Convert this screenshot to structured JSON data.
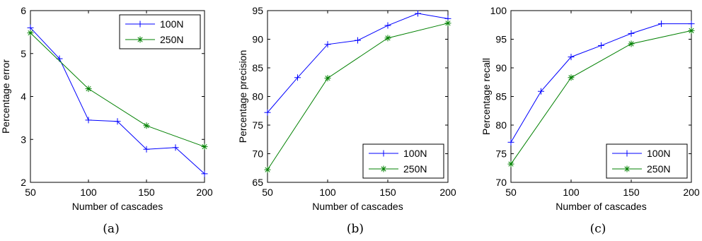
{
  "chart_data": [
    {
      "type": "line",
      "caption": "(a)",
      "xlabel": "Number of cascades",
      "ylabel": "Percentage error",
      "xlim": [
        50,
        200
      ],
      "ylim": [
        2,
        6
      ],
      "xticks": [
        50,
        100,
        150,
        200
      ],
      "yticks": [
        2,
        3,
        4,
        5,
        6
      ],
      "legend_position": "top-right",
      "series": [
        {
          "name": "100N",
          "color": "#0000ff",
          "marker": "plus",
          "x": [
            50,
            75,
            100,
            125,
            150,
            175,
            200
          ],
          "y": [
            5.6,
            4.88,
            3.45,
            3.42,
            2.77,
            2.81,
            2.2
          ]
        },
        {
          "name": "250N",
          "color": "#008000",
          "marker": "star",
          "x": [
            50,
            100,
            150,
            200
          ],
          "y": [
            5.48,
            4.18,
            3.32,
            2.83
          ]
        }
      ]
    },
    {
      "type": "line",
      "caption": "(b)",
      "xlabel": "Number of cascades",
      "ylabel": "Percentage precision",
      "xlim": [
        50,
        200
      ],
      "ylim": [
        65,
        95
      ],
      "xticks": [
        50,
        100,
        150,
        200
      ],
      "yticks": [
        65,
        70,
        75,
        80,
        85,
        90,
        95
      ],
      "legend_position": "bottom-right",
      "series": [
        {
          "name": "100N",
          "color": "#0000ff",
          "marker": "plus",
          "x": [
            50,
            75,
            100,
            125,
            150,
            175,
            200
          ],
          "y": [
            77.2,
            83.3,
            89.1,
            89.8,
            92.4,
            94.5,
            93.6
          ]
        },
        {
          "name": "250N",
          "color": "#008000",
          "marker": "star",
          "x": [
            50,
            100,
            150,
            200
          ],
          "y": [
            67.2,
            83.2,
            90.2,
            92.8
          ]
        }
      ]
    },
    {
      "type": "line",
      "caption": "(c)",
      "xlabel": "Number of cascades",
      "ylabel": "Percentage recall",
      "xlim": [
        50,
        200
      ],
      "ylim": [
        70,
        100
      ],
      "xticks": [
        50,
        100,
        150,
        200
      ],
      "yticks": [
        70,
        75,
        80,
        85,
        90,
        95,
        100
      ],
      "legend_position": "bottom-right",
      "series": [
        {
          "name": "100N",
          "color": "#0000ff",
          "marker": "plus",
          "x": [
            50,
            75,
            100,
            125,
            150,
            175,
            200
          ],
          "y": [
            77.0,
            85.9,
            91.9,
            93.9,
            96.0,
            97.7,
            97.7
          ]
        },
        {
          "name": "250N",
          "color": "#008000",
          "marker": "star",
          "x": [
            50,
            100,
            150,
            200
          ],
          "y": [
            73.2,
            88.3,
            94.2,
            96.5
          ]
        }
      ]
    }
  ]
}
